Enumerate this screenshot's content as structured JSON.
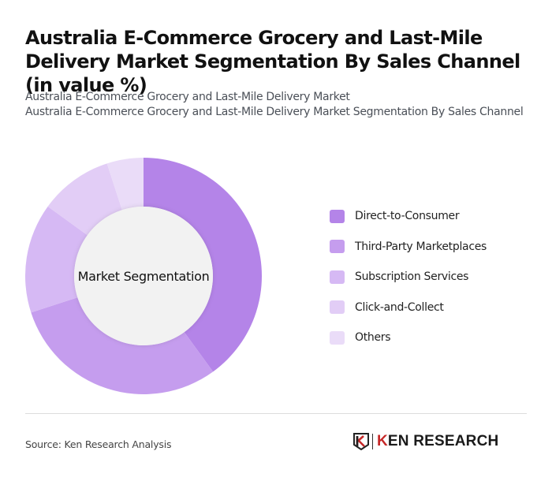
{
  "title": "Australia E-Commerce Grocery and Last-Mile Delivery Market Segmentation By Sales Channel (in value %)",
  "subtitle_line1": "Australia E-Commerce Grocery and Last-Mile Delivery Market",
  "subtitle_line2": "Australia E-Commerce Grocery and Last-Mile Delivery Market Segmentation By Sales Channel",
  "center_label": "Market Segmentation",
  "source": "Source: Ken Research Analysis",
  "logo": {
    "prefix": "K",
    "text": "EN RESEARCH"
  },
  "legend": [
    {
      "label": "Direct-to-Consumer",
      "color": "#b484e8"
    },
    {
      "label": "Third-Party Marketplaces",
      "color": "#c59dee"
    },
    {
      "label": "Subscription Services",
      "color": "#d6b9f4"
    },
    {
      "label": "Click-and-Collect",
      "color": "#e2cdf6"
    },
    {
      "label": "Others",
      "color": "#eadcf8"
    }
  ],
  "chart_data": {
    "type": "pie",
    "variant": "donut",
    "title": "Australia E-Commerce Grocery and Last-Mile Delivery Market Segmentation By Sales Channel (in value %)",
    "center_label": "Market Segmentation",
    "categories": [
      "Direct-to-Consumer",
      "Third-Party Marketplaces",
      "Subscription Services",
      "Click-and-Collect",
      "Others"
    ],
    "values": [
      40,
      30,
      15,
      10,
      5
    ],
    "colors": [
      "#b484e8",
      "#c59dee",
      "#d6b9f4",
      "#e2cdf6",
      "#eadcf8"
    ],
    "legend_position": "right",
    "unit": "%"
  }
}
